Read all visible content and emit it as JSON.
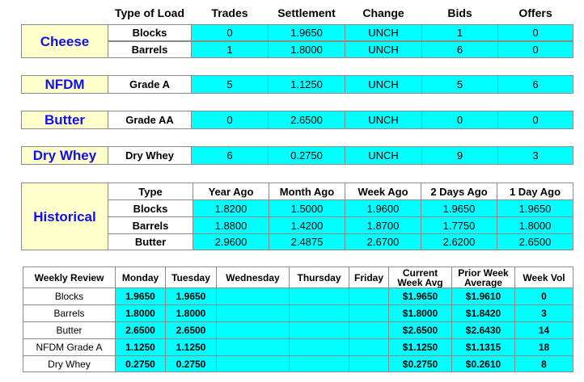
{
  "header": {
    "columns": [
      "Type of Load",
      "Trades",
      "Settlement",
      "Change",
      "Bids",
      "Offers"
    ]
  },
  "groups": [
    {
      "label": "Cheese",
      "rows": [
        [
          "Blocks",
          "0",
          "1.9650",
          "UNCH",
          "1",
          "0"
        ],
        [
          "Barrels",
          "1",
          "1.8000",
          "UNCH",
          "6",
          "0"
        ]
      ]
    },
    {
      "label": "NFDM",
      "rows": [
        [
          "Grade A",
          "5",
          "1.1250",
          "UNCH",
          "5",
          "6"
        ]
      ]
    },
    {
      "label": "Butter",
      "rows": [
        [
          "Grade AA",
          "0",
          "2.6500",
          "UNCH",
          "0",
          "0"
        ]
      ]
    },
    {
      "label": "Dry Whey",
      "rows": [
        [
          "Dry Whey",
          "6",
          "0.2750",
          "UNCH",
          "9",
          "3"
        ]
      ]
    }
  ],
  "historical": {
    "label": "Historical",
    "columns": [
      "Type",
      "Year Ago",
      "Month Ago",
      "Week Ago",
      "2 Days Ago",
      "1 Day Ago"
    ],
    "rows": [
      [
        "Blocks",
        "1.8200",
        "1.5000",
        "1.9600",
        "1.9650",
        "1.9650"
      ],
      [
        "Barrels",
        "1.8800",
        "1.4200",
        "1.8700",
        "1.7750",
        "1.8000"
      ],
      [
        "Butter",
        "2.9600",
        "2.4875",
        "2.6700",
        "2.6200",
        "2.6500"
      ]
    ]
  },
  "weekly": {
    "columns": [
      "Weekly Review",
      "Monday",
      "Tuesday",
      "Wednesday",
      "Thursday",
      "Friday",
      "Current Week Avg",
      "Prior Week Average",
      "Week Vol"
    ],
    "rows": [
      [
        "Blocks",
        "1.9650",
        "1.9650",
        "",
        "",
        "",
        "$1.9650",
        "$1.9610",
        "0"
      ],
      [
        "Barrels",
        "1.8000",
        "1.8000",
        "",
        "",
        "",
        "$1.8000",
        "$1.8420",
        "3"
      ],
      [
        "Butter",
        "2.6500",
        "2.6500",
        "",
        "",
        "",
        "$2.6500",
        "$2.6430",
        "14"
      ],
      [
        "NFDM Grade A",
        "1.1250",
        "1.1250",
        "",
        "",
        "",
        "$1.1250",
        "$1.1315",
        "18"
      ],
      [
        "Dry Whey",
        "0.2750",
        "0.2750",
        "",
        "",
        "",
        "$0.2750",
        "$0.2610",
        "8"
      ]
    ]
  }
}
